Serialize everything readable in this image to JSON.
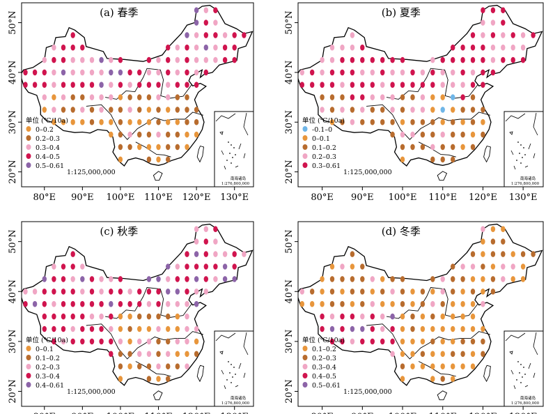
{
  "scale_label": "1:125,000,000",
  "inset": {
    "title": "南海诸岛",
    "scale": "1:276,800,000"
  },
  "x_ticks": [
    "80°E",
    "90°E",
    "100°E",
    "110°E",
    "120°E",
    "130°E"
  ],
  "y_ticks": [
    "50°N",
    "40°N",
    "30°N",
    "20°N"
  ],
  "colors": {
    "c_blue": "#6fb6e8",
    "c_orange": "#e8963c",
    "c_brown": "#b86c2e",
    "c_pink": "#f0a6c4",
    "c_red": "#d0144e",
    "c_purple": "#8c64a8"
  },
  "panels": [
    {
      "title": "(a) 春季",
      "legend_title": "单位 (℃/10a)",
      "legend": [
        {
          "label": "0–0.2",
          "color": "#e8963c"
        },
        {
          "label": "0.2–0.3",
          "color": "#b86c2e"
        },
        {
          "label": "0.3–0.4",
          "color": "#f0a6c4"
        },
        {
          "label": "0.4–0.5",
          "color": "#d0144e"
        },
        {
          "label": "0.5–0.61",
          "color": "#8c64a8"
        }
      ]
    },
    {
      "title": "(b) 夏季",
      "legend_title": "单位 (℃/10a)",
      "legend": [
        {
          "label": "-0.1–0",
          "color": "#6fb6e8"
        },
        {
          "label": "0–0.1",
          "color": "#e8963c"
        },
        {
          "label": "0.1–0.2",
          "color": "#b86c2e"
        },
        {
          "label": "0.2–0.3",
          "color": "#f0a6c4"
        },
        {
          "label": "0.3–0.61",
          "color": "#d0144e"
        }
      ]
    },
    {
      "title": "(c) 秋季",
      "legend_title": "单位 (℃/10a)",
      "legend": [
        {
          "label": "0–0.1",
          "color": "#e8963c"
        },
        {
          "label": "0.1–0.2",
          "color": "#b86c2e"
        },
        {
          "label": "0.2–0.3",
          "color": "#f0a6c4"
        },
        {
          "label": "0.3–0.4",
          "color": "#d0144e"
        },
        {
          "label": "0.4–0.61",
          "color": "#8c64a8"
        }
      ]
    },
    {
      "title": "(d) 冬季",
      "legend_title": "单位 (℃/10a)",
      "legend": [
        {
          "label": "0.1–0.2",
          "color": "#e8963c"
        },
        {
          "label": "0.2–0.3",
          "color": "#b86c2e"
        },
        {
          "label": "0.3–0.4",
          "color": "#f0a6c4"
        },
        {
          "label": "0.4–0.5",
          "color": "#d0144e"
        },
        {
          "label": "0.5–0.61",
          "color": "#8c64a8"
        }
      ]
    }
  ]
}
